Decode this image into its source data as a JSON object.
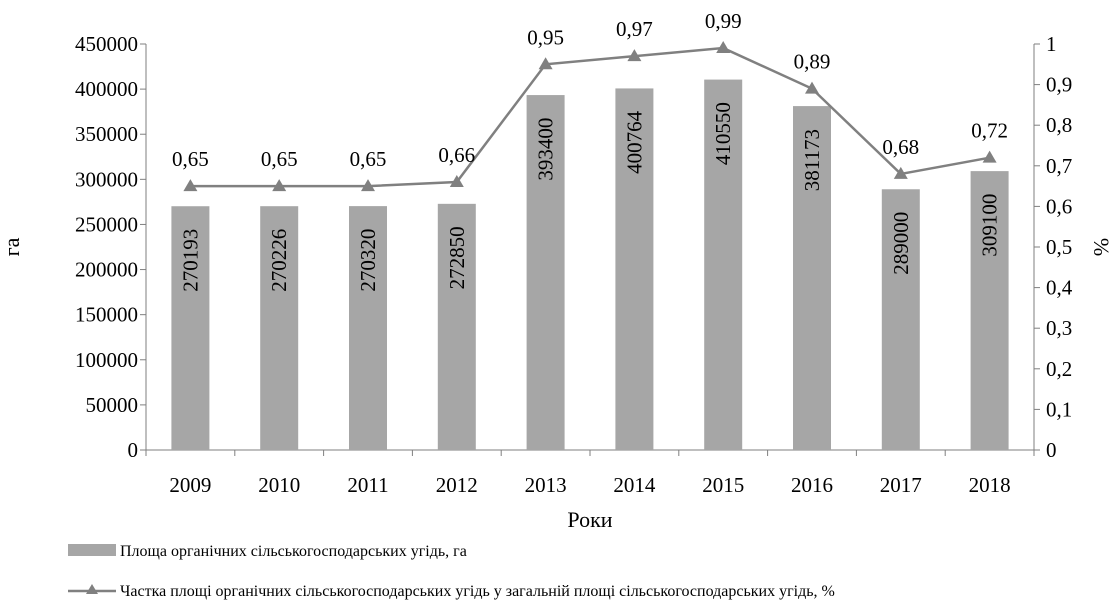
{
  "chart_data": {
    "type": "bar+line",
    "categories": [
      "2009",
      "2010",
      "2011",
      "2012",
      "2013",
      "2014",
      "2015",
      "2016",
      "2017",
      "2018"
    ],
    "series": [
      {
        "name": "Площа органічних сільськогосподарських угідь, га",
        "type": "bar",
        "axis": "left",
        "color": "#a6a6a6",
        "values": [
          270193,
          270226,
          270320,
          272850,
          393400,
          400764,
          410550,
          381173,
          289000,
          309100
        ],
        "labels": [
          "270193",
          "270226",
          "270320",
          "272850",
          "393400",
          "400764",
          "410550",
          "381173",
          "289000",
          "309100"
        ]
      },
      {
        "name": "Частка площі органічних сільськогосподарських угідь у загальній площі сільськогосподарських угідь, %",
        "type": "line",
        "axis": "right",
        "color": "#808080",
        "marker": "triangle",
        "values": [
          0.65,
          0.65,
          0.65,
          0.66,
          0.95,
          0.97,
          0.99,
          0.89,
          0.68,
          0.72
        ],
        "labels": [
          "0,65",
          "0,65",
          "0,65",
          "0,66",
          "0,95",
          "0,97",
          "0,99",
          "0,89",
          "0,68",
          "0,72"
        ]
      }
    ],
    "xlabel": "Роки",
    "ylabel": "га",
    "y2label": "%",
    "ylim": [
      0,
      450000
    ],
    "y2lim": [
      0,
      1
    ],
    "yticks": [
      "0",
      "50000",
      "100000",
      "150000",
      "200000",
      "250000",
      "300000",
      "350000",
      "400000",
      "450000"
    ],
    "y2ticks": [
      "0",
      "0,1",
      "0,2",
      "0,3",
      "0,4",
      "0,5",
      "0,6",
      "0,7",
      "0,8",
      "0,9",
      "1"
    ],
    "grid": false,
    "legend_position": "bottom"
  }
}
